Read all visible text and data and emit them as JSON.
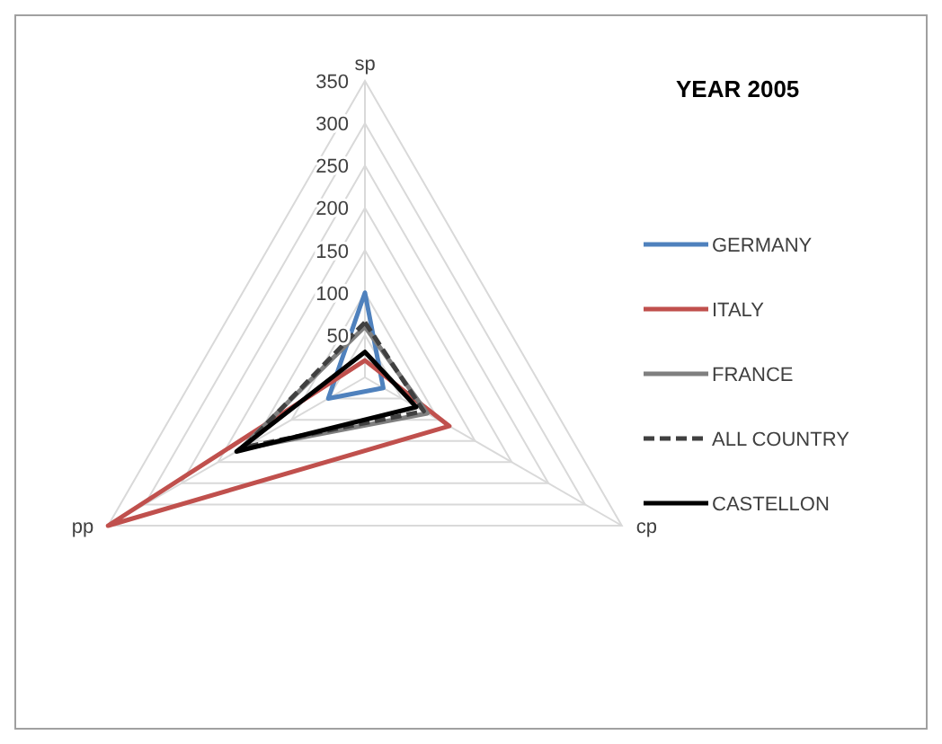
{
  "chart_data": {
    "type": "radar",
    "title": "YEAR 2005",
    "categories": [
      "sp",
      "cp",
      "pp"
    ],
    "ylim": [
      0,
      350
    ],
    "yticks": [
      50,
      100,
      150,
      200,
      250,
      300,
      350
    ],
    "grid": true,
    "legend": "right",
    "marker": "none",
    "series": [
      {
        "name": "GERMANY",
        "color": "#4f81bd",
        "values": [
          100,
          25,
          50
        ]
      },
      {
        "name": "ITALY",
        "color": "#c0504d",
        "values": [
          20,
          115,
          350
        ]
      },
      {
        "name": "FRANCE",
        "color": "#7f7f7f",
        "values": [
          60,
          85,
          170
        ]
      },
      {
        "name": "ALL COUNTRY",
        "color": "#404040",
        "values": [
          65,
          80,
          165
        ],
        "line_style": "dashed"
      },
      {
        "name": "CASTELLON",
        "color": "#000000",
        "values": [
          30,
          70,
          175
        ]
      }
    ]
  }
}
